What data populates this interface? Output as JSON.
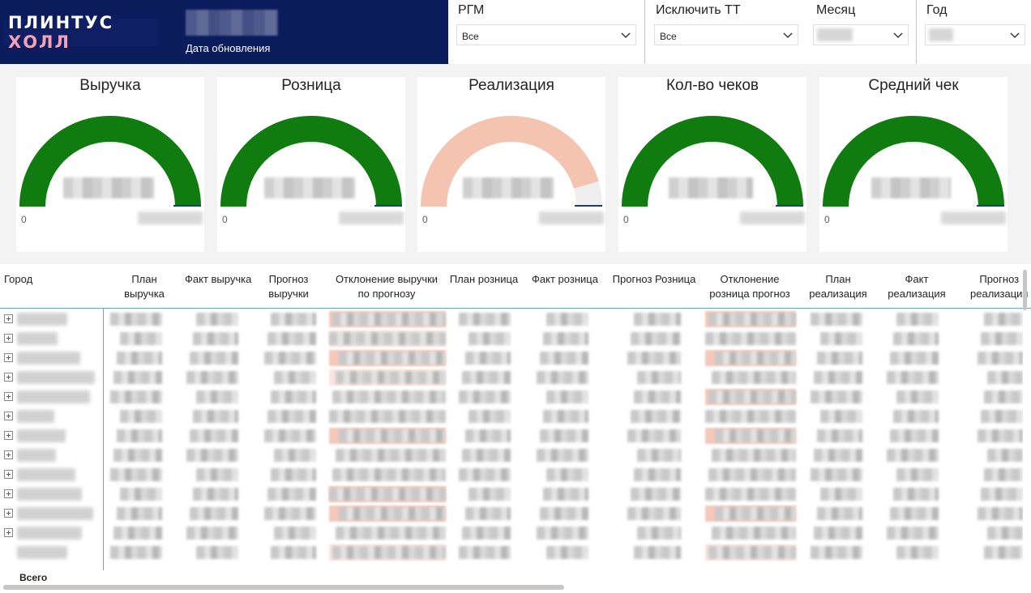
{
  "brand": {
    "logo_text_a": "ПЛИНТУС ",
    "logo_text_b": "ХОЛЛ",
    "update_label": "Дата обновления"
  },
  "slicers": [
    {
      "title": "РГМ",
      "value": "Все"
    },
    {
      "title": "Исключить ТТ",
      "value": "Все"
    },
    {
      "title": "Месяц",
      "value": ""
    },
    {
      "title": "Год",
      "value": ""
    }
  ],
  "gauges": [
    {
      "title": "Выручка",
      "min": "0",
      "fill_fraction": 1.0,
      "color": "#107c10"
    },
    {
      "title": "Розница",
      "min": "0",
      "fill_fraction": 1.0,
      "color": "#107c10"
    },
    {
      "title": "Реализация",
      "min": "0",
      "fill_fraction": 0.91,
      "color": "#f4c4b1"
    },
    {
      "title": "Кол-во чеков",
      "min": "0",
      "fill_fraction": 1.0,
      "color": "#107c10"
    },
    {
      "title": "Средний чек",
      "min": "0",
      "fill_fraction": 1.0,
      "color": "#107c10"
    }
  ],
  "table": {
    "row_header": "Город",
    "columns": [
      {
        "line1": "План",
        "line2": "выручка"
      },
      {
        "line1": "Факт выручка",
        "line2": ""
      },
      {
        "line1": "Прогноз",
        "line2": "выручки"
      },
      {
        "line1": "Отклонение выручки",
        "line2": "по прогнозу"
      },
      {
        "line1": "План розница",
        "line2": ""
      },
      {
        "line1": "Факт розница",
        "line2": ""
      },
      {
        "line1": "Прогноз Розница",
        "line2": ""
      },
      {
        "line1": "Отклонение",
        "line2": "розница прогноз"
      },
      {
        "line1": "План",
        "line2": "реализация"
      },
      {
        "line1": "Факт",
        "line2": "реализация"
      },
      {
        "line1": "Прогноз",
        "line2": "реализация"
      }
    ],
    "total_label": "Всего"
  }
}
